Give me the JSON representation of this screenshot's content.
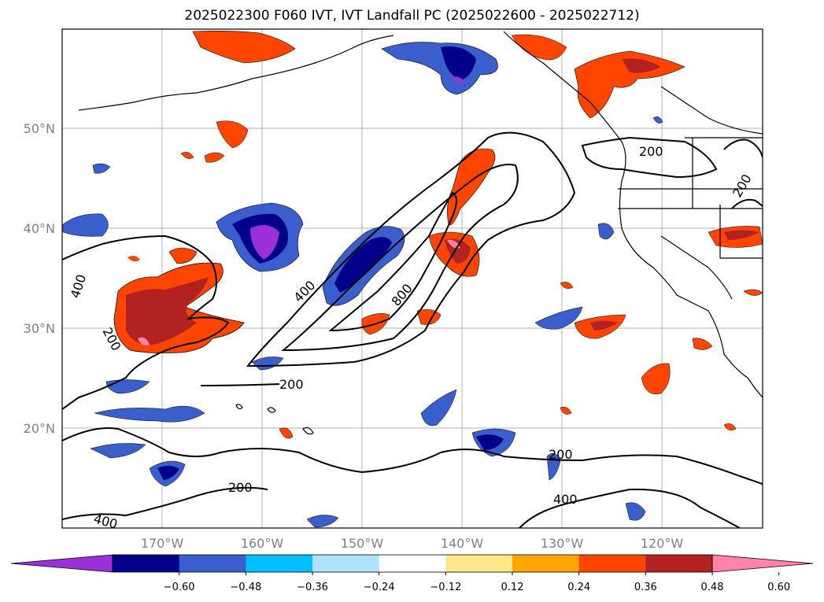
{
  "title": "2025022300 F060 IVT, IVT Landfall PC (2025022600 - 2025022712)",
  "map": {
    "lat_labels": [
      "50°N",
      "40°N",
      "30°N",
      "20°N"
    ],
    "lon_labels": [
      "170°W",
      "160°W",
      "150°W",
      "140°W",
      "130°W",
      "120°W"
    ],
    "contour_labels": [
      "400",
      "200",
      "200",
      "400",
      "800",
      "200",
      "200",
      "200",
      "400",
      "400",
      "200"
    ]
  },
  "colorbar": {
    "ticks": [
      "−0.60",
      "−0.48",
      "−0.36",
      "−0.24",
      "−0.12",
      "0.12",
      "0.24",
      "0.36",
      "0.48",
      "0.60"
    ],
    "colors": [
      "#9b30d9",
      "#00008b",
      "#3a5fcd",
      "#00bfff",
      "#b0e2ff",
      "#ffffff",
      "#ffe88a",
      "#ffa500",
      "#ff4500",
      "#b22222",
      "#ff82ab"
    ]
  }
}
